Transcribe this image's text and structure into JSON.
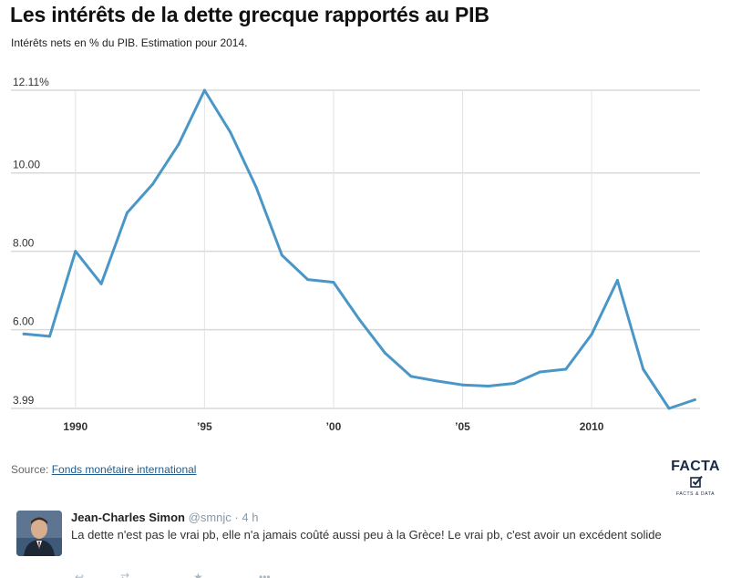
{
  "header": {
    "title": "Les intérêts de la dette grecque rapportés au PIB",
    "subtitle": "Intérêts nets en % du PIB. Estimation pour 2014."
  },
  "chart_data": {
    "type": "line",
    "title": "Les intérêts de la dette grecque rapportés au PIB",
    "subtitle": "Intérêts nets en % du PIB. Estimation pour 2014.",
    "xlabel": "",
    "ylabel": "",
    "x": [
      1988,
      1989,
      1990,
      1991,
      1992,
      1993,
      1994,
      1995,
      1996,
      1997,
      1998,
      1999,
      2000,
      2001,
      2002,
      2003,
      2004,
      2005,
      2006,
      2007,
      2008,
      2009,
      2010,
      2011,
      2012,
      2013,
      2014
    ],
    "series": [
      {
        "name": "Intérêts nets (% du PIB)",
        "color": "#4a97c7",
        "values": [
          5.89,
          5.83,
          8.0,
          7.17,
          8.98,
          9.72,
          10.73,
          12.11,
          11.04,
          9.64,
          7.9,
          7.28,
          7.21,
          6.26,
          5.4,
          4.81,
          4.69,
          4.59,
          4.56,
          4.63,
          4.92,
          4.99,
          5.88,
          7.26,
          4.99,
          3.99,
          4.21
        ]
      }
    ],
    "xlim": [
      1987.5,
      2014.2
    ],
    "ylim": [
      3.99,
      12.11
    ],
    "yticks": [
      {
        "value": 12.11,
        "label": "12.11%"
      },
      {
        "value": 10.0,
        "label": "10.00"
      },
      {
        "value": 8.0,
        "label": "8.00"
      },
      {
        "value": 6.0,
        "label": "6.00"
      },
      {
        "value": 3.99,
        "label": "3.99"
      }
    ],
    "xticks": [
      {
        "value": 1990,
        "label": "1990"
      },
      {
        "value": 1995,
        "label": "’95"
      },
      {
        "value": 2000,
        "label": "’00"
      },
      {
        "value": 2005,
        "label": "’05"
      },
      {
        "value": 2010,
        "label": "2010"
      }
    ],
    "grid": true,
    "legend": "none"
  },
  "source": {
    "prefix": "Source:",
    "link_text": "Fonds monétaire international"
  },
  "brand": {
    "name": "FACTA",
    "tagline": "FACTS & DATA"
  },
  "tweet": {
    "name": "Jean-Charles Simon",
    "handle": "@smnjc",
    "separator": "·",
    "time": "4 h",
    "text": "La dette n'est pas le vrai pb, elle n'a jamais coûté aussi peu à la Grèce! Le vrai pb, c'est avoir un excédent solide"
  }
}
